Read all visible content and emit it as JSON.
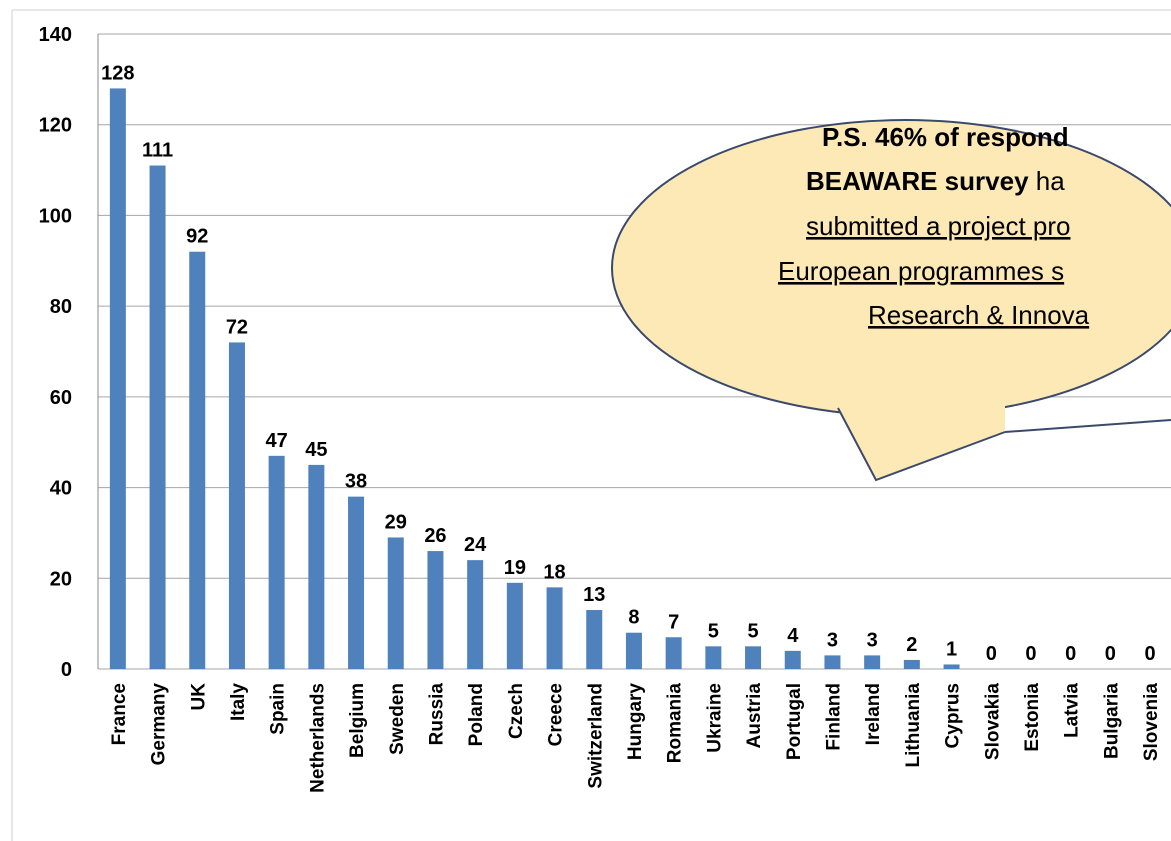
{
  "chart_data": {
    "type": "bar",
    "categories": [
      "France",
      "Germany",
      "UK",
      "Italy",
      "Spain",
      "Netherlands",
      "Belgium",
      "Sweden",
      "Russia",
      "Poland",
      "Czech",
      "Creece",
      "Switzerland",
      "Hungary",
      "Romania",
      "Ukraine",
      "Austria",
      "Portugal",
      "Finland",
      "Ireland",
      "Lithuania",
      "Cyprus",
      "Slovakia",
      "Estonia",
      "Latvia",
      "Bulgaria",
      "Slovenia"
    ],
    "values": [
      128,
      111,
      92,
      72,
      47,
      45,
      38,
      29,
      26,
      24,
      19,
      18,
      13,
      8,
      7,
      5,
      5,
      4,
      3,
      3,
      2,
      1,
      0,
      0,
      0,
      0,
      0
    ],
    "color": "#4f81bd",
    "ylim": [
      0,
      140
    ],
    "yticks": [
      0,
      20,
      40,
      60,
      80,
      100,
      120,
      140
    ],
    "grid": true
  },
  "callout": {
    "line1": "P.S. 46% of respond",
    "line2_bold": "BEAWARE survey",
    "line2": " ha",
    "line3": "submitted a project pro",
    "line4": "European programmes s",
    "line5": "Research & Innova"
  }
}
